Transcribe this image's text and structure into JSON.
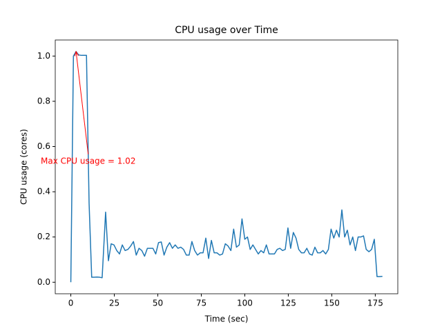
{
  "chart_data": {
    "type": "line",
    "title": "CPU usage over Time",
    "x_label": "Time (sec)",
    "y_label": "CPU usage (cores)",
    "x": [
      0,
      1.5,
      3,
      4.5,
      6,
      7.5,
      9,
      10.5,
      12,
      13.5,
      15,
      16.5,
      18,
      20,
      21.6,
      23.2,
      24.8,
      26.4,
      28,
      29.6,
      31.2,
      32.8,
      34.4,
      36,
      37.6,
      39.2,
      40.8,
      42.4,
      44,
      45.6,
      47.2,
      48.8,
      50.4,
      52,
      53.6,
      55.2,
      56.8,
      58.4,
      60,
      61.6,
      63.2,
      64.8,
      66.4,
      68,
      69.6,
      71.2,
      72.8,
      74.4,
      76,
      77.6,
      79.2,
      80.8,
      82.4,
      84,
      85.6,
      87.2,
      88.8,
      90.4,
      92,
      93.6,
      95.2,
      96.8,
      98.4,
      100,
      101.55,
      103.1,
      104.65,
      106.2,
      107.75,
      109.3,
      110.85,
      112.4,
      113.95,
      115.5,
      117.05,
      118.6,
      120.15,
      121.7,
      123.25,
      124.8,
      126.35,
      127.9,
      129.45,
      131,
      132.55,
      134.1,
      135.65,
      137.2,
      138.75,
      140.3,
      141.85,
      143.4,
      144.95,
      146.5,
      148.05,
      149.6,
      151.15,
      152.7,
      154.25,
      155.8,
      157.4,
      158.95,
      160.5,
      162.05,
      163.6,
      165.15,
      166.7,
      168.25,
      169.8,
      171.35,
      172.9,
      174.45,
      176,
      177.55,
      179.1
    ],
    "series": [
      {
        "name": "CPU usage",
        "color": "#1f77b4",
        "values": [
          0,
          1.0,
          1.02,
          1.005,
          1.003,
          1.003,
          1.003,
          0.35,
          0.022,
          0.022,
          0.023,
          0.022,
          0.02,
          0.31,
          0.095,
          0.17,
          0.165,
          0.14,
          0.125,
          0.165,
          0.14,
          0.145,
          0.16,
          0.18,
          0.12,
          0.15,
          0.14,
          0.115,
          0.15,
          0.15,
          0.15,
          0.125,
          0.175,
          0.178,
          0.12,
          0.155,
          0.175,
          0.15,
          0.165,
          0.15,
          0.155,
          0.145,
          0.12,
          0.12,
          0.18,
          0.14,
          0.12,
          0.13,
          0.13,
          0.195,
          0.105,
          0.185,
          0.13,
          0.13,
          0.12,
          0.125,
          0.17,
          0.16,
          0.14,
          0.235,
          0.155,
          0.165,
          0.28,
          0.19,
          0.2,
          0.145,
          0.165,
          0.145,
          0.125,
          0.14,
          0.13,
          0.165,
          0.125,
          0.125,
          0.125,
          0.145,
          0.15,
          0.14,
          0.145,
          0.24,
          0.15,
          0.22,
          0.195,
          0.145,
          0.13,
          0.13,
          0.15,
          0.125,
          0.12,
          0.155,
          0.13,
          0.13,
          0.14,
          0.125,
          0.145,
          0.235,
          0.195,
          0.23,
          0.2,
          0.32,
          0.2,
          0.23,
          0.165,
          0.2,
          0.14,
          0.2,
          0.2,
          0.205,
          0.145,
          0.135,
          0.145,
          0.19,
          0.025,
          0.025,
          0.026
        ]
      }
    ],
    "xlim": [
      -8.95,
      187.95
    ],
    "ylim": [
      -0.051,
      1.071
    ],
    "xticks": [
      0,
      25,
      50,
      75,
      100,
      125,
      150,
      175
    ],
    "yticks": [
      {
        "value": 0,
        "label": "0.0"
      },
      {
        "value": 0.2,
        "label": "0.2"
      },
      {
        "value": 0.4,
        "label": "0.4"
      },
      {
        "value": 0.6,
        "label": "0.6"
      },
      {
        "value": 0.8,
        "label": "0.8"
      },
      {
        "value": 1,
        "label": "1.0"
      }
    ],
    "annotation": {
      "text": "Max CPU usage = 1.02",
      "xy": [
        3,
        1.02
      ],
      "xytext": [
        10,
        0.535
      ],
      "color": "red"
    }
  }
}
